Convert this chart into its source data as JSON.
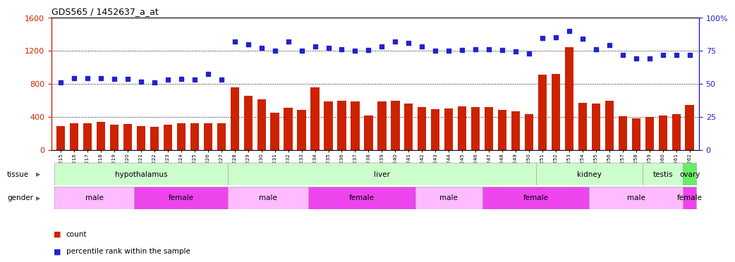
{
  "title": "GDS565 / 1452637_a_at",
  "samples": [
    "GSM19215",
    "GSM19216",
    "GSM19217",
    "GSM19218",
    "GSM19219",
    "GSM19220",
    "GSM19221",
    "GSM19222",
    "GSM19223",
    "GSM19224",
    "GSM19225",
    "GSM19226",
    "GSM19227",
    "GSM19228",
    "GSM19229",
    "GSM19230",
    "GSM19231",
    "GSM19232",
    "GSM19233",
    "GSM19234",
    "GSM19235",
    "GSM19236",
    "GSM19237",
    "GSM19238",
    "GSM19239",
    "GSM19240",
    "GSM19241",
    "GSM19242",
    "GSM19243",
    "GSM19244",
    "GSM19245",
    "GSM19246",
    "GSM19247",
    "GSM19248",
    "GSM19249",
    "GSM19250",
    "GSM19251",
    "GSM19252",
    "GSM19253",
    "GSM19254",
    "GSM19255",
    "GSM19256",
    "GSM19257",
    "GSM19258",
    "GSM19259",
    "GSM19260",
    "GSM19261",
    "GSM19262"
  ],
  "counts": [
    290,
    320,
    325,
    335,
    305,
    315,
    285,
    275,
    305,
    320,
    318,
    318,
    325,
    760,
    655,
    615,
    450,
    510,
    480,
    755,
    585,
    590,
    585,
    415,
    585,
    590,
    560,
    520,
    490,
    500,
    530,
    520,
    515,
    485,
    465,
    430,
    910,
    920,
    1240,
    570,
    560,
    595,
    410,
    380,
    395,
    415,
    435,
    545
  ],
  "percentile": [
    820,
    870,
    870,
    870,
    855,
    855,
    825,
    820,
    850,
    860,
    850,
    915,
    850,
    1310,
    1280,
    1230,
    1200,
    1310,
    1200,
    1250,
    1230,
    1220,
    1200,
    1210,
    1250,
    1310,
    1295,
    1250,
    1200,
    1200,
    1210,
    1215,
    1215,
    1205,
    1190,
    1170,
    1355,
    1360,
    1440,
    1345,
    1215,
    1265,
    1150,
    1105,
    1110,
    1145,
    1145,
    1150
  ],
  "bar_color": "#cc2200",
  "dot_color": "#2222cc",
  "ylim_left": [
    0,
    1600
  ],
  "ylim_right": [
    0,
    100
  ],
  "yticks_left": [
    0,
    400,
    800,
    1200,
    1600
  ],
  "yticks_right": [
    0,
    25,
    50,
    75,
    100
  ],
  "tissue_groups": [
    {
      "label": "hypothalamus",
      "start": 0,
      "end": 12,
      "color": "#ccffcc"
    },
    {
      "label": "liver",
      "start": 13,
      "end": 35,
      "color": "#ccffcc"
    },
    {
      "label": "kidney",
      "start": 36,
      "end": 43,
      "color": "#ccffcc"
    },
    {
      "label": "testis",
      "start": 44,
      "end": 46,
      "color": "#ccffcc"
    },
    {
      "label": "ovary",
      "start": 47,
      "end": 47,
      "color": "#66ee66"
    }
  ],
  "gender_groups": [
    {
      "label": "male",
      "start": 0,
      "end": 5,
      "color": "#ffbbff"
    },
    {
      "label": "female",
      "start": 6,
      "end": 12,
      "color": "#ee44ee"
    },
    {
      "label": "male",
      "start": 13,
      "end": 18,
      "color": "#ffbbff"
    },
    {
      "label": "female",
      "start": 19,
      "end": 26,
      "color": "#ee44ee"
    },
    {
      "label": "male",
      "start": 27,
      "end": 31,
      "color": "#ffbbff"
    },
    {
      "label": "female",
      "start": 32,
      "end": 39,
      "color": "#ee44ee"
    },
    {
      "label": "male",
      "start": 40,
      "end": 46,
      "color": "#ffbbff"
    },
    {
      "label": "female",
      "start": 47,
      "end": 47,
      "color": "#ee44ee"
    }
  ]
}
